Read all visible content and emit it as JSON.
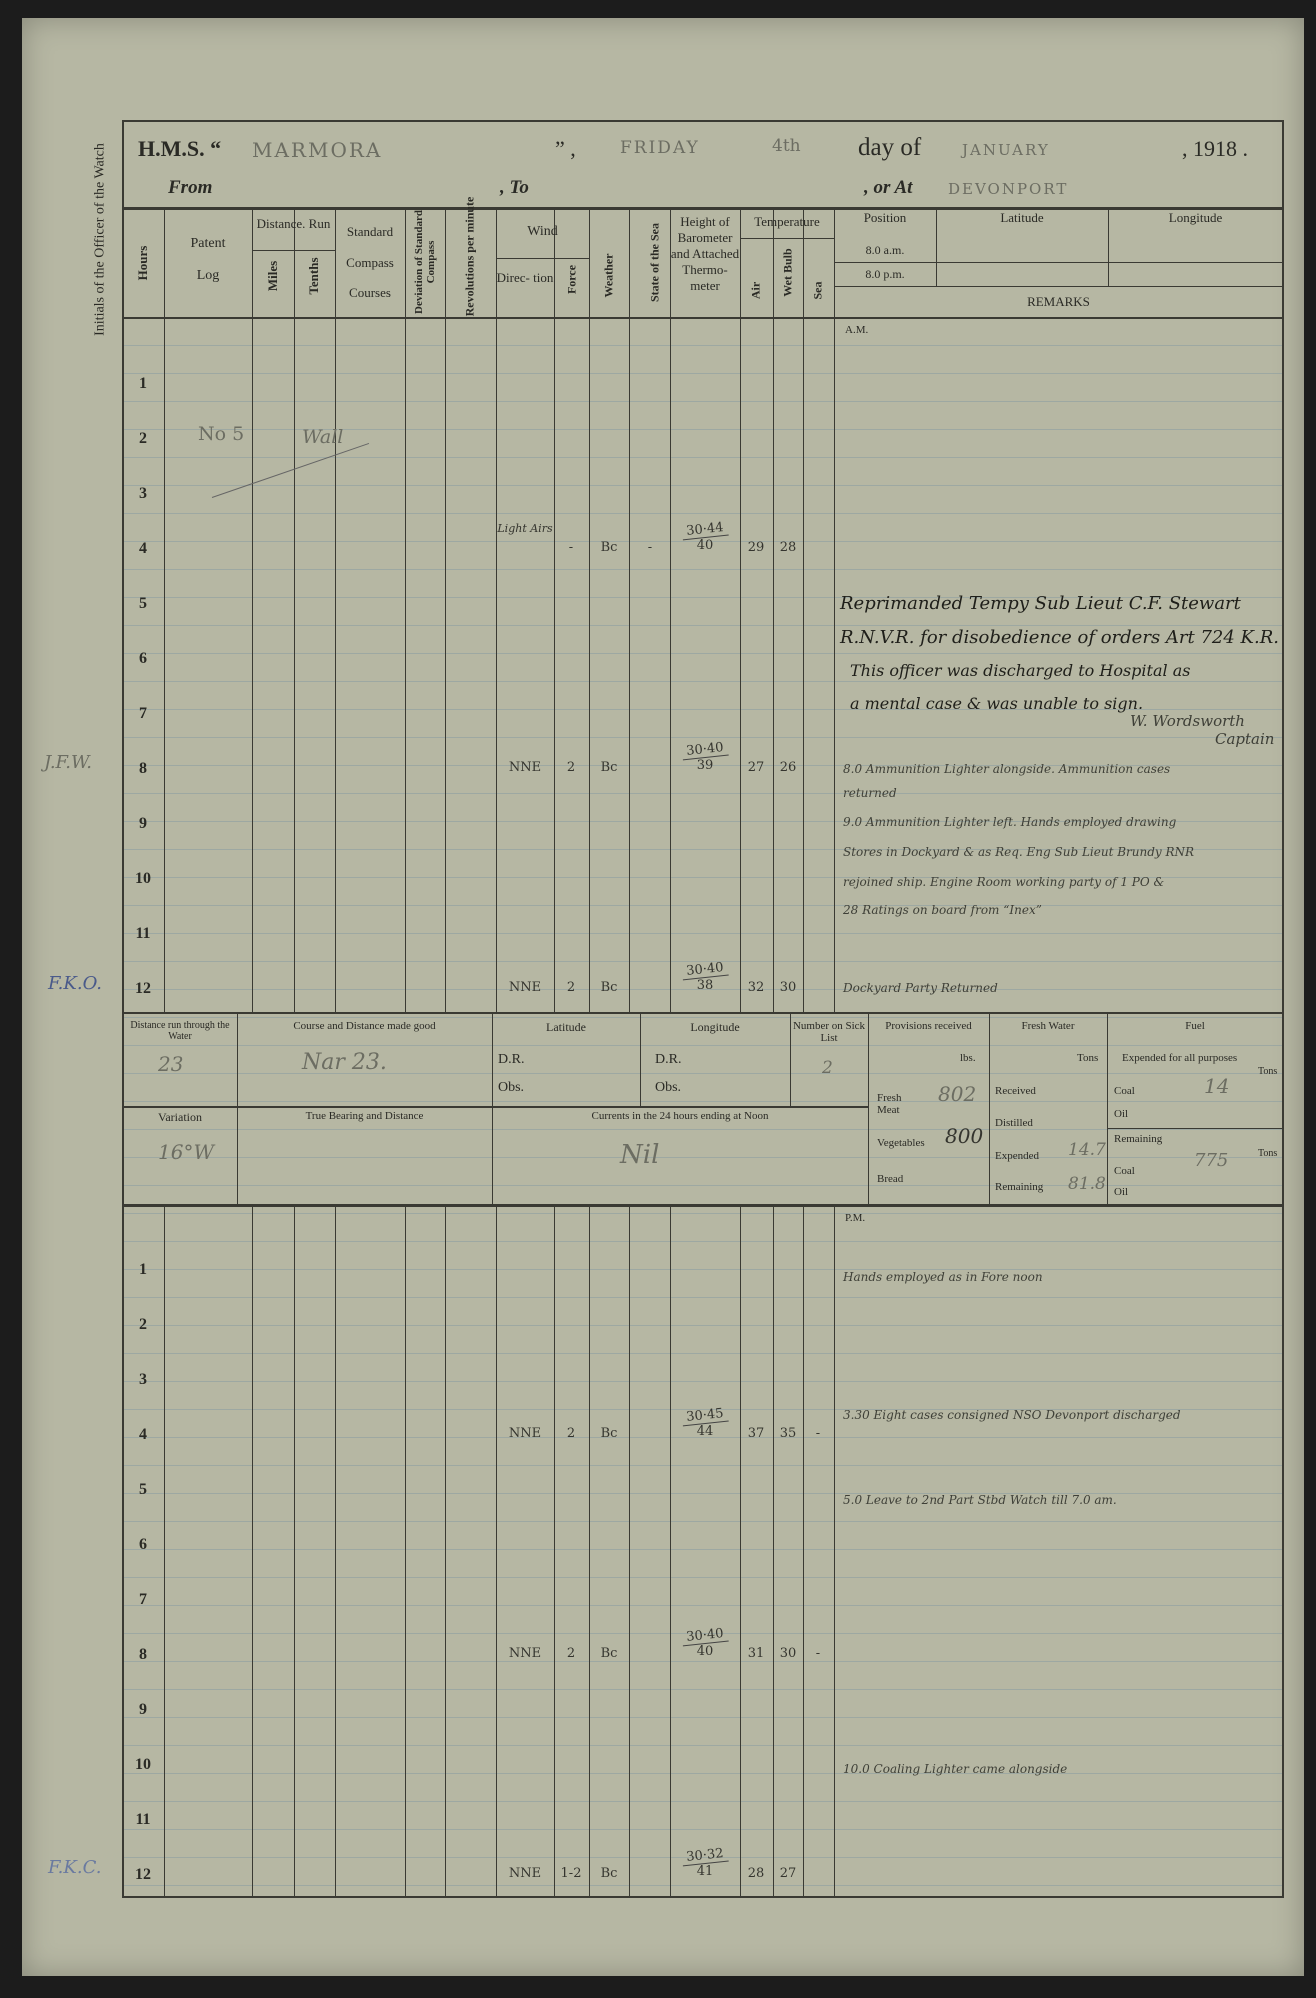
{
  "header": {
    "hms": "H.M.S. “",
    "ship": "MARMORA",
    "close_quote": "”  ,",
    "weekday": "FRIDAY",
    "day": "4th",
    "day_of": "day of",
    "month": "JANUARY",
    "year": ", 1918 .",
    "from": "From",
    "to": ", To",
    "or_at": ", or At",
    "place": "DEVONPORT"
  },
  "margin": {
    "label": "Initials of the Officer of the Watch",
    "initials": [
      "J.F.W.",
      "F.K.O.",
      "F.K.C."
    ]
  },
  "columns": {
    "hours": "Hours",
    "patent": "Patent",
    "log": "Log",
    "distance_run": "Distance. Run",
    "miles": "Miles",
    "tenths": "Tenths",
    "standard": "Standard",
    "compass": "Compass",
    "courses": "Courses",
    "deviation": "Deviation of Standard Compass",
    "revolutions": "Revolutions per minute",
    "wind": "Wind",
    "direction": "Direc- tion",
    "force": "Force",
    "weather": "Weather",
    "state_sea": "State of the Sea",
    "barometer": "Height of Barometer and Attached Thermo- meter",
    "temperature": "Temperature",
    "air": "Air",
    "wet_bulb": "Wet Bulb",
    "sea": "Sea",
    "position": "Position",
    "am8": "8.0 a.m.",
    "pm8": "8.0 p.m.",
    "latitude": "Latitude",
    "longitude": "Longitude",
    "remarks": "REMARKS"
  },
  "am": {
    "label": "A.M.",
    "patent_log_note": "No 5",
    "log_note": "Wall",
    "rows": [
      {
        "hour": "1"
      },
      {
        "hour": "2"
      },
      {
        "hour": "3"
      },
      {
        "hour": "4",
        "wind_dir": "Light Airs",
        "force": "-",
        "weather": "Bc",
        "sea_state": "-",
        "baro": "30·44",
        "thermo": "40",
        "air": "29",
        "wet": "28"
      },
      {
        "hour": "5"
      },
      {
        "hour": "6"
      },
      {
        "hour": "7"
      },
      {
        "hour": "8",
        "wind_dir": "NNE",
        "force": "2",
        "weather": "Bc",
        "baro": "30·40",
        "thermo": "39",
        "air": "27",
        "wet": "26"
      },
      {
        "hour": "9"
      },
      {
        "hour": "10"
      },
      {
        "hour": "11"
      },
      {
        "hour": "12",
        "wind_dir": "NNE",
        "force": "2",
        "weather": "Bc",
        "baro": "30·40",
        "thermo": "38",
        "air": "32",
        "wet": "30"
      }
    ],
    "remarks": [
      "Reprimanded Tempy Sub Lieut C.F. Stewart",
      "R.N.V.R. for disobedience of orders Art 724 K.R.",
      "This officer was discharged to Hospital as",
      "a mental case & was unable to sign.",
      "W. Wordsworth",
      "Captain",
      "8.0 Ammunition Lighter alongside. Ammunition cases",
      "returned",
      "9.0 Ammunition Lighter left. Hands employed drawing",
      "Stores in Dockyard & as Req. Eng Sub Lieut Brundy RNR",
      "rejoined ship. Engine Room working party of 1 PO &",
      "28 Ratings on board from “Inex”",
      "Dockyard Party Returned"
    ]
  },
  "noon": {
    "distance_label": "Distance run through the Water",
    "distance": "23",
    "course_label": "Course and Distance made good",
    "course": "Nar 23.",
    "latitude_label": "Latitude",
    "longitude_label": "Longitude",
    "dr": "D.R.",
    "obs": "Obs.",
    "sick_label": "Number on Sick List",
    "sick": "2",
    "variation_label": "Variation",
    "variation": "16°W",
    "bearing_label": "True Bearing and Distance",
    "currents_label": "Currents in the 24 hours ending at Noon",
    "currents": "Nil",
    "provisions": {
      "label": "Provisions received",
      "unit": "lbs.",
      "fresh_meat_label": "Fresh Meat",
      "fresh_meat": "802",
      "vegetables_label": "Vegetables",
      "vegetables": "800",
      "bread_label": "Bread"
    },
    "water": {
      "label": "Fresh Water",
      "unit": "Tons",
      "received_label": "Received",
      "distilled_label": "Distilled",
      "expended_label": "Expended",
      "expended": "14.7",
      "remaining_label": "Remaining",
      "remaining": "81.8"
    },
    "fuel": {
      "label": "Fuel",
      "expended_label": "Expended for all purposes",
      "tons": "Tons",
      "coal_label": "Coal",
      "coal_expended": "14",
      "oil_label": "Oil",
      "remaining_label": "Remaining",
      "coal_remaining": "775"
    }
  },
  "pm": {
    "label": "P.M.",
    "rows": [
      {
        "hour": "1"
      },
      {
        "hour": "2"
      },
      {
        "hour": "3"
      },
      {
        "hour": "4",
        "wind_dir": "NNE",
        "force": "2",
        "weather": "Bc",
        "baro": "30·45",
        "thermo": "44",
        "air": "37",
        "wet": "35",
        "sea_temp": "-"
      },
      {
        "hour": "5"
      },
      {
        "hour": "6"
      },
      {
        "hour": "7"
      },
      {
        "hour": "8",
        "wind_dir": "NNE",
        "force": "2",
        "weather": "Bc",
        "baro": "30·40",
        "thermo": "40",
        "air": "31",
        "wet": "30",
        "sea_temp": "-"
      },
      {
        "hour": "9"
      },
      {
        "hour": "10"
      },
      {
        "hour": "11"
      },
      {
        "hour": "12",
        "wind_dir": "NNE",
        "force": "1-2",
        "weather": "Bc",
        "baro": "30·32",
        "thermo": "41",
        "air": "28",
        "wet": "27"
      }
    ],
    "remarks": [
      "Hands employed as in Fore noon",
      "3.30 Eight cases consigned NSO Devonport discharged",
      "5.0 Leave to 2nd Part Stbd Watch till 7.0 am.",
      "10.0 Coaling Lighter came alongside"
    ]
  }
}
